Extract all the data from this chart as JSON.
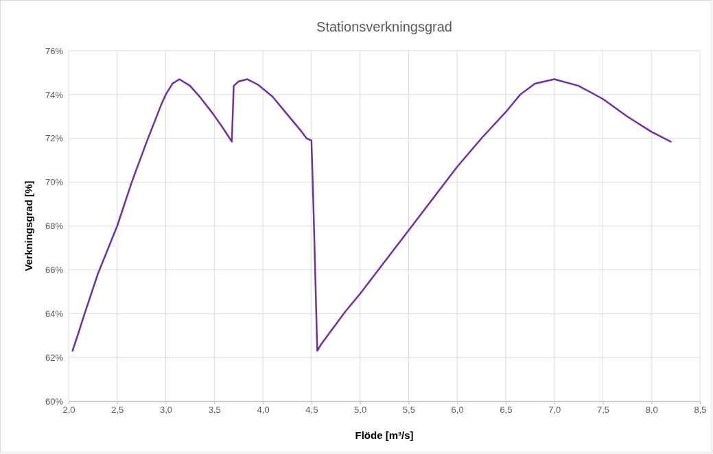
{
  "chart_data": {
    "type": "line",
    "title": "Stationsverkningsgrad",
    "xlabel": "Flöde [m³/s]",
    "ylabel": "Verkningsgrad [%]",
    "xlim": [
      2.0,
      8.5
    ],
    "xticks": [
      {
        "value": 2.0,
        "label": "2,0"
      },
      {
        "value": 2.5,
        "label": "2,5"
      },
      {
        "value": 3.0,
        "label": "3,0"
      },
      {
        "value": 3.5,
        "label": "3,5"
      },
      {
        "value": 4.0,
        "label": "4,0"
      },
      {
        "value": 4.5,
        "label": "4,5"
      },
      {
        "value": 5.0,
        "label": "5,0"
      },
      {
        "value": 5.5,
        "label": "5,5"
      },
      {
        "value": 6.0,
        "label": "6,0"
      },
      {
        "value": 6.5,
        "label": "6,5"
      },
      {
        "value": 7.0,
        "label": "7,0"
      },
      {
        "value": 7.5,
        "label": "7,5"
      },
      {
        "value": 8.0,
        "label": "8,0"
      },
      {
        "value": 8.5,
        "label": "8,5"
      }
    ],
    "ylim": [
      60,
      76
    ],
    "yticks": [
      {
        "value": 60,
        "label": "60%"
      },
      {
        "value": 62,
        "label": "62%"
      },
      {
        "value": 64,
        "label": "64%"
      },
      {
        "value": 66,
        "label": "66%"
      },
      {
        "value": 68,
        "label": "68%"
      },
      {
        "value": 70,
        "label": "70%"
      },
      {
        "value": 72,
        "label": "72%"
      },
      {
        "value": 74,
        "label": "74%"
      },
      {
        "value": 76,
        "label": "76%"
      }
    ],
    "grid": true,
    "marker": "none",
    "line_style": "solid",
    "series": [
      {
        "color": "#7030a0",
        "x": [
          2.04,
          2.1,
          2.15,
          2.3,
          2.5,
          2.65,
          2.8,
          2.95,
          3.0,
          3.07,
          3.14,
          3.25,
          3.35,
          3.49,
          3.6,
          3.68,
          3.7,
          3.75,
          3.84,
          3.95,
          4.1,
          4.25,
          4.4,
          4.45,
          4.5,
          4.52,
          4.56,
          4.6,
          4.7,
          4.75,
          4.85,
          5.0,
          5.5,
          6.0,
          6.25,
          6.5,
          6.65,
          6.8,
          7.0,
          7.25,
          7.5,
          7.75,
          8.0,
          8.2
        ],
        "values": [
          62.3,
          63.1,
          63.8,
          65.8,
          68.0,
          70.0,
          71.8,
          73.5,
          74.0,
          74.5,
          74.7,
          74.4,
          73.9,
          73.1,
          72.4,
          71.85,
          74.4,
          74.6,
          74.7,
          74.45,
          73.9,
          73.1,
          72.3,
          72.0,
          71.9,
          69.0,
          62.3,
          62.6,
          63.2,
          63.5,
          64.1,
          64.9,
          67.8,
          70.7,
          72.0,
          73.2,
          74.0,
          74.5,
          74.7,
          74.4,
          73.8,
          73.0,
          72.3,
          71.85
        ]
      }
    ]
  }
}
